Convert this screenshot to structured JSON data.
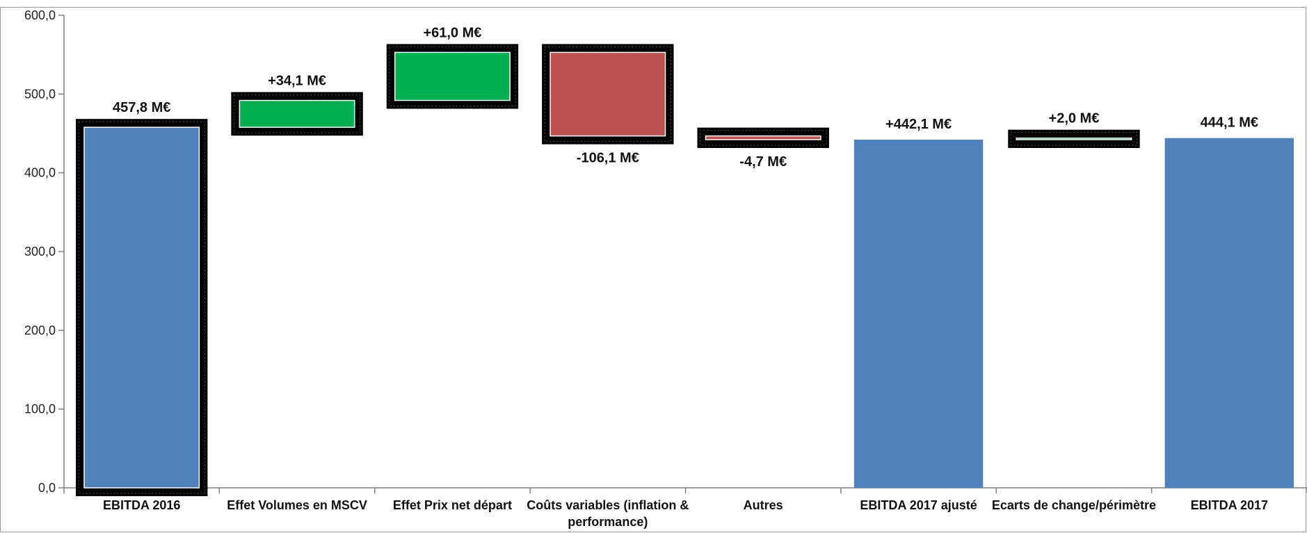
{
  "chart_data": {
    "type": "bar",
    "subtype": "waterfall",
    "categories": [
      "EBITDA 2016",
      "Effet Volumes en MSCV",
      "Effet Prix net départ",
      "Coûts variables (inflation & performance)",
      "Autres",
      "EBITDA 2017 ajusté",
      "Ecarts de change/périmètre",
      "EBITDA 2017"
    ],
    "category_lines": [
      [
        "EBITDA 2016"
      ],
      [
        "Effet Volumes en MSCV"
      ],
      [
        "Effet Prix net départ"
      ],
      [
        "Coûts variables (inflation &",
        "performance)"
      ],
      [
        "Autres"
      ],
      [
        "EBITDA 2017 ajusté"
      ],
      [
        "Ecarts de change/périmètre"
      ],
      [
        "EBITDA 2017"
      ]
    ],
    "values": [
      457.8,
      34.1,
      61.0,
      -106.1,
      -4.7,
      442.1,
      2.0,
      444.1
    ],
    "kinds": [
      "total",
      "delta",
      "delta",
      "delta",
      "delta",
      "total",
      "delta",
      "total"
    ],
    "data_labels": [
      "457,8 M€",
      "+34,1 M€",
      "+61,0 M€",
      "-106,1 M€",
      "-4,7 M€",
      "+442,1 M€",
      "+2,0 M€",
      "444,1 M€"
    ],
    "ylim": [
      0,
      600
    ],
    "yticks": [
      0,
      100,
      200,
      300,
      400,
      500,
      600
    ],
    "ytick_labels": [
      "0,0",
      "100,0",
      "200,0",
      "300,0",
      "400,0",
      "500,0",
      "600,0"
    ],
    "title": "",
    "xlabel": "",
    "ylabel": "",
    "grid": false,
    "colors": {
      "total": "#4F81BD",
      "increase": "#00B050",
      "decrease": "#C0504D",
      "frame": "#000000"
    }
  }
}
